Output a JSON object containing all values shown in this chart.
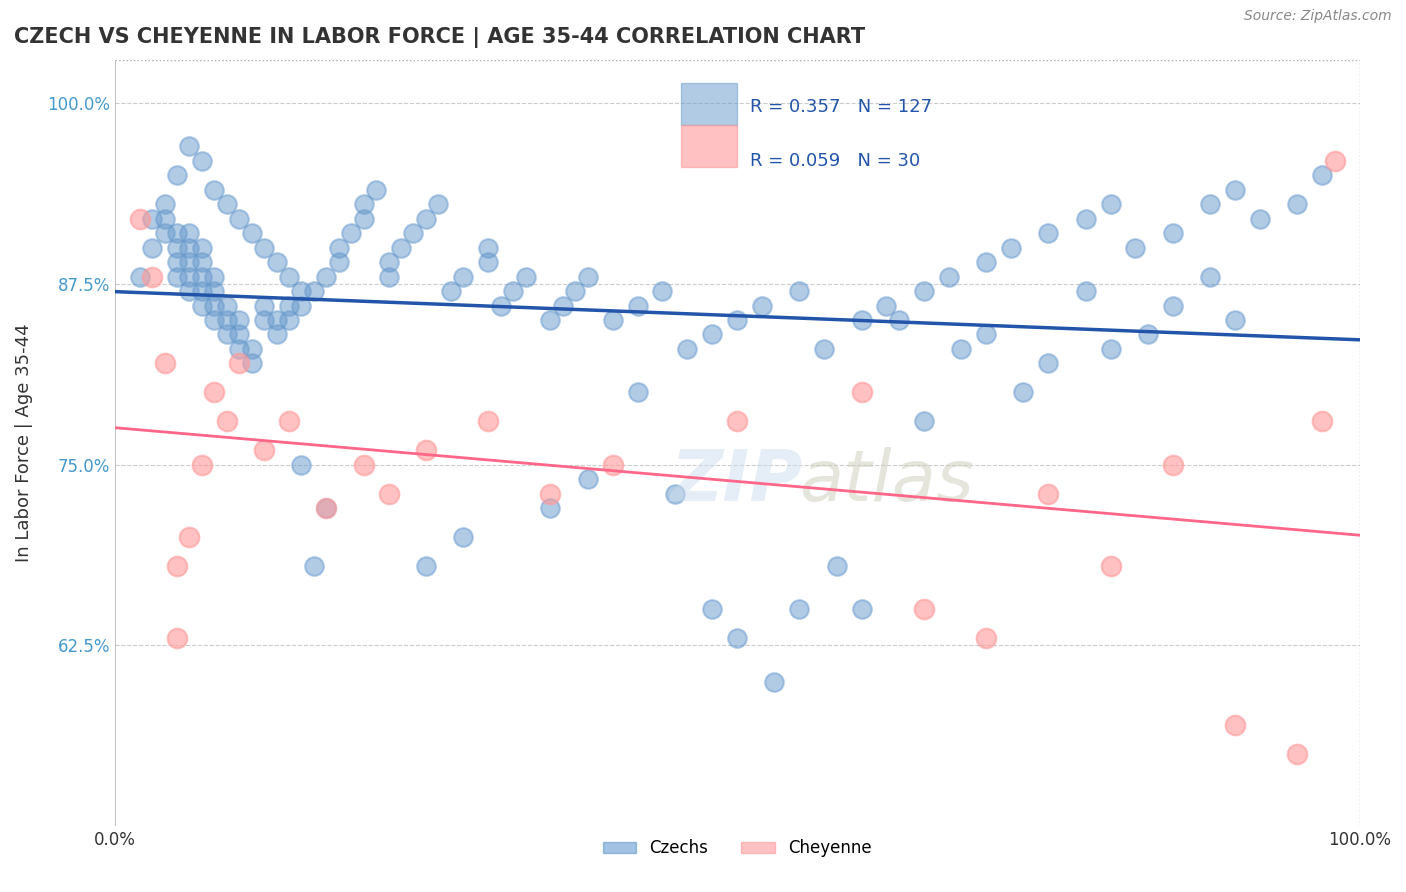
{
  "title": "CZECH VS CHEYENNE IN LABOR FORCE | AGE 35-44 CORRELATION CHART",
  "source": "Source: ZipAtlas.com",
  "ylabel": "In Labor Force | Age 35-44",
  "xlabel": "",
  "xlim": [
    0.0,
    1.0
  ],
  "ylim": [
    0.5,
    1.03
  ],
  "yticks": [
    0.625,
    0.75,
    0.875,
    1.0
  ],
  "ytick_labels": [
    "62.5%",
    "75.0%",
    "87.5%",
    "100.0%"
  ],
  "xticks": [
    0.0,
    0.25,
    0.5,
    0.75,
    1.0
  ],
  "xtick_labels": [
    "0.0%",
    "",
    "",
    "",
    "100.0%"
  ],
  "czech_R": 0.357,
  "czech_N": 127,
  "cheyenne_R": 0.059,
  "cheyenne_N": 30,
  "czech_color": "#6699CC",
  "cheyenne_color": "#FF9999",
  "trend_czech_color": "#2255AA",
  "trend_cheyenne_color": "#FF6688",
  "watermark": "ZIPatlas",
  "legend_czechs": "Czechs",
  "legend_cheyenne": "Cheyenne",
  "czech_x": [
    0.02,
    0.03,
    0.03,
    0.04,
    0.04,
    0.04,
    0.05,
    0.05,
    0.05,
    0.05,
    0.06,
    0.06,
    0.06,
    0.06,
    0.06,
    0.07,
    0.07,
    0.07,
    0.07,
    0.07,
    0.08,
    0.08,
    0.08,
    0.08,
    0.09,
    0.09,
    0.09,
    0.1,
    0.1,
    0.1,
    0.11,
    0.11,
    0.12,
    0.12,
    0.13,
    0.13,
    0.14,
    0.14,
    0.15,
    0.15,
    0.16,
    0.17,
    0.18,
    0.18,
    0.19,
    0.2,
    0.2,
    0.21,
    0.22,
    0.22,
    0.23,
    0.24,
    0.25,
    0.26,
    0.27,
    0.28,
    0.3,
    0.3,
    0.31,
    0.32,
    0.33,
    0.35,
    0.36,
    0.37,
    0.38,
    0.4,
    0.42,
    0.44,
    0.46,
    0.48,
    0.5,
    0.52,
    0.55,
    0.57,
    0.6,
    0.62,
    0.65,
    0.67,
    0.7,
    0.72,
    0.75,
    0.78,
    0.8,
    0.82,
    0.85,
    0.88,
    0.9,
    0.92,
    0.95,
    0.97,
    0.05,
    0.06,
    0.07,
    0.08,
    0.09,
    0.1,
    0.11,
    0.12,
    0.13,
    0.14,
    0.15,
    0.16,
    0.17,
    0.25,
    0.28,
    0.35,
    0.38,
    0.42,
    0.45,
    0.48,
    0.5,
    0.53,
    0.55,
    0.58,
    0.6,
    0.63,
    0.65,
    0.68,
    0.7,
    0.73,
    0.75,
    0.78,
    0.8,
    0.83,
    0.85,
    0.88,
    0.9
  ],
  "czech_y": [
    0.88,
    0.92,
    0.9,
    0.93,
    0.91,
    0.92,
    0.88,
    0.9,
    0.91,
    0.89,
    0.88,
    0.87,
    0.89,
    0.9,
    0.91,
    0.86,
    0.87,
    0.88,
    0.89,
    0.9,
    0.85,
    0.86,
    0.87,
    0.88,
    0.84,
    0.85,
    0.86,
    0.83,
    0.84,
    0.85,
    0.82,
    0.83,
    0.85,
    0.86,
    0.84,
    0.85,
    0.85,
    0.86,
    0.86,
    0.87,
    0.87,
    0.88,
    0.89,
    0.9,
    0.91,
    0.92,
    0.93,
    0.94,
    0.88,
    0.89,
    0.9,
    0.91,
    0.92,
    0.93,
    0.87,
    0.88,
    0.89,
    0.9,
    0.86,
    0.87,
    0.88,
    0.85,
    0.86,
    0.87,
    0.88,
    0.85,
    0.86,
    0.87,
    0.83,
    0.84,
    0.85,
    0.86,
    0.87,
    0.83,
    0.85,
    0.86,
    0.87,
    0.88,
    0.89,
    0.9,
    0.91,
    0.92,
    0.93,
    0.9,
    0.91,
    0.93,
    0.94,
    0.92,
    0.93,
    0.95,
    0.95,
    0.97,
    0.96,
    0.94,
    0.93,
    0.92,
    0.91,
    0.9,
    0.89,
    0.88,
    0.75,
    0.68,
    0.72,
    0.68,
    0.7,
    0.72,
    0.74,
    0.8,
    0.73,
    0.65,
    0.63,
    0.6,
    0.65,
    0.68,
    0.65,
    0.85,
    0.78,
    0.83,
    0.84,
    0.8,
    0.82,
    0.87,
    0.83,
    0.84,
    0.86,
    0.88,
    0.85
  ],
  "cheyenne_x": [
    0.02,
    0.03,
    0.04,
    0.05,
    0.05,
    0.06,
    0.07,
    0.08,
    0.09,
    0.1,
    0.12,
    0.14,
    0.17,
    0.2,
    0.22,
    0.25,
    0.3,
    0.35,
    0.4,
    0.5,
    0.6,
    0.65,
    0.7,
    0.75,
    0.8,
    0.85,
    0.9,
    0.95,
    0.97,
    0.98
  ],
  "cheyenne_y": [
    0.92,
    0.88,
    0.82,
    0.68,
    0.63,
    0.7,
    0.75,
    0.8,
    0.78,
    0.82,
    0.76,
    0.78,
    0.72,
    0.75,
    0.73,
    0.76,
    0.78,
    0.73,
    0.75,
    0.78,
    0.8,
    0.65,
    0.63,
    0.73,
    0.68,
    0.75,
    0.57,
    0.55,
    0.78,
    0.96
  ]
}
